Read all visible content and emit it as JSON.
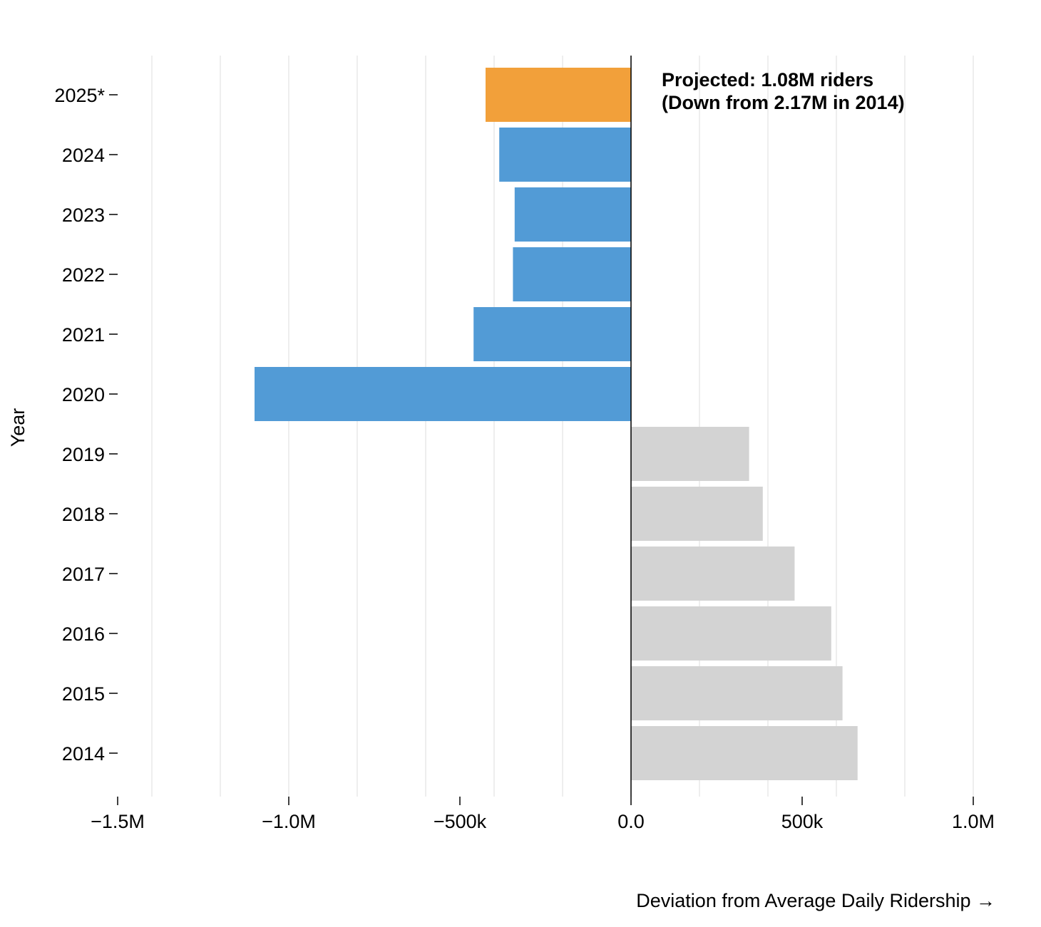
{
  "chart_data": {
    "type": "bar",
    "orientation": "horizontal",
    "categories": [
      "2025*",
      "2024",
      "2023",
      "2022",
      "2021",
      "2020",
      "2019",
      "2018",
      "2017",
      "2016",
      "2015",
      "2014"
    ],
    "values": [
      -425000,
      -385000,
      -340000,
      -345000,
      -460000,
      -1100000,
      345000,
      385000,
      478000,
      585000,
      618000,
      662000
    ],
    "bar_colors": [
      "#f2a03a",
      "#529bd6",
      "#529bd6",
      "#529bd6",
      "#529bd6",
      "#529bd6",
      "#d3d3d3",
      "#d3d3d3",
      "#d3d3d3",
      "#d3d3d3",
      "#d3d3d3",
      "#d3d3d3"
    ],
    "xlim": [
      -1500000,
      1000000
    ],
    "x_ticks": [
      -1500000,
      -1000000,
      -500000,
      0,
      500000,
      1000000
    ],
    "x_tick_labels": [
      "−1.5M",
      "−1.0M",
      "−500k",
      "0.0",
      "500k",
      "1.0M"
    ],
    "x_grid_step": 200000,
    "grid": true,
    "title": "",
    "xlabel": "Deviation from Average Daily Ridership →",
    "ylabel": "Year",
    "annotation": {
      "lines": [
        "Projected: 1.08M riders",
        "(Down from 2.17M in 2014)"
      ]
    }
  }
}
